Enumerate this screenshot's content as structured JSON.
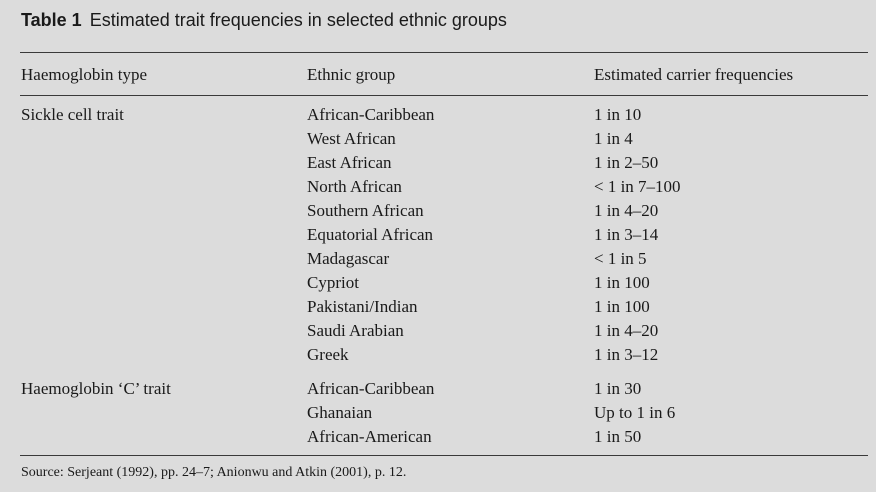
{
  "table": {
    "number": "Table 1",
    "title": "Estimated trait frequencies in selected ethnic groups",
    "headers": [
      "Haemoglobin type",
      "Ethnic group",
      "Estimated carrier frequencies"
    ],
    "groups": [
      {
        "type": "Sickle cell trait",
        "rows": [
          {
            "ethnic": "African-Caribbean",
            "freq": "1 in 10"
          },
          {
            "ethnic": "West African",
            "freq": "1 in 4"
          },
          {
            "ethnic": "East African",
            "freq": "1 in 2–50"
          },
          {
            "ethnic": "North African",
            "freq": "< 1 in 7–100"
          },
          {
            "ethnic": "Southern African",
            "freq": "1 in 4–20"
          },
          {
            "ethnic": "Equatorial African",
            "freq": "1 in 3–14"
          },
          {
            "ethnic": "Madagascar",
            "freq": "< 1 in 5"
          },
          {
            "ethnic": "Cypriot",
            "freq": "1 in 100"
          },
          {
            "ethnic": "Pakistani/Indian",
            "freq": "1 in 100"
          },
          {
            "ethnic": "Saudi Arabian",
            "freq": "1 in 4–20"
          },
          {
            "ethnic": "Greek",
            "freq": "1 in 3–12"
          }
        ]
      },
      {
        "type": "Haemoglobin ‘C’ trait",
        "rows": [
          {
            "ethnic": "African-Caribbean",
            "freq": "1 in 30"
          },
          {
            "ethnic": "Ghanaian",
            "freq": "Up to 1 in 6"
          },
          {
            "ethnic": "African-American",
            "freq": "1 in 50"
          }
        ]
      }
    ],
    "source": "Source: Serjeant (1992), pp. 24–7; Anionwu and Atkin (2001), p. 12."
  }
}
